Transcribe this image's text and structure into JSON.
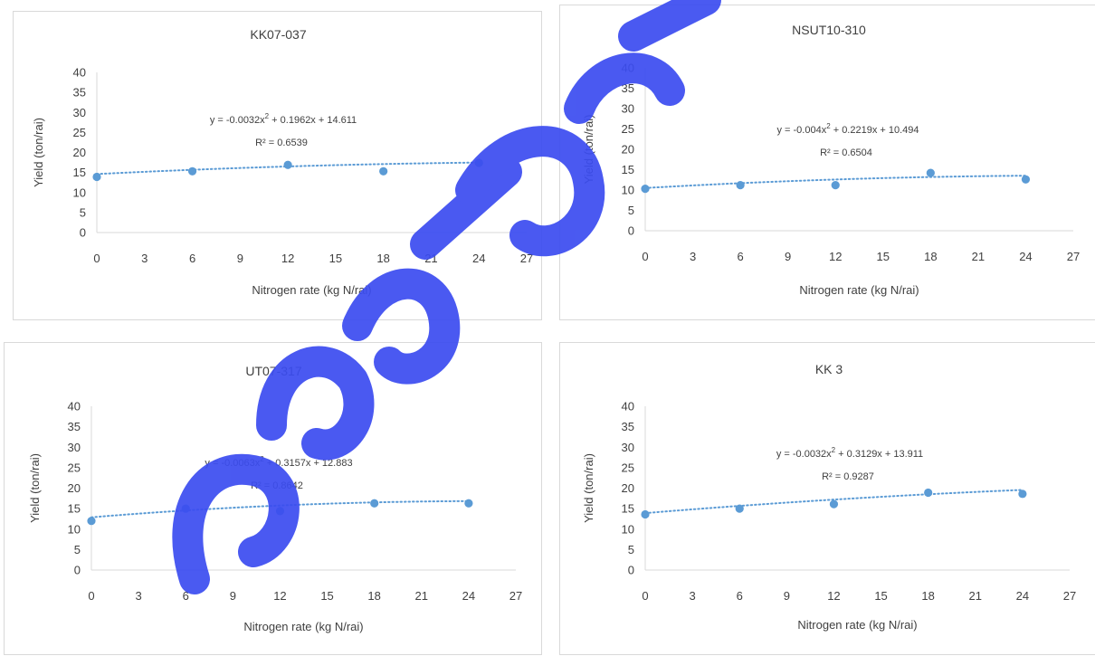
{
  "chart_data": [
    {
      "type": "scatter",
      "title": "KK07-037",
      "xlabel": "Nitrogen rate (kg N/rai)",
      "ylabel": "Yield (ton/rai)",
      "xlim": [
        0,
        27
      ],
      "ylim": [
        0,
        40
      ],
      "xticks": [
        "0",
        "3",
        "6",
        "9",
        "12",
        "15",
        "18",
        "21",
        "24",
        "27"
      ],
      "yticks": [
        "0",
        "5",
        "10",
        "15",
        "20",
        "25",
        "30",
        "35",
        "40"
      ],
      "x": [
        0,
        6,
        12,
        18,
        24
      ],
      "y": [
        13.9,
        15.3,
        16.9,
        15.3,
        17.4
      ],
      "trend": {
        "type": "polynomial-2",
        "a": -0.0032,
        "b": 0.1962,
        "c": 14.611,
        "eq_prefix": "y = -0.0032x",
        "eq_suffix": " + 0.1962x + 14.611",
        "r2": "R² = 0.6539"
      },
      "grid": false,
      "color": "#5b9bd5"
    },
    {
      "type": "scatter",
      "title": "NSUT10-310",
      "xlabel": "Nitrogen rate (kg N/rai)",
      "ylabel": "Yield (ton/rai)",
      "xlim": [
        0,
        27
      ],
      "ylim": [
        0,
        40
      ],
      "xticks": [
        "0",
        "3",
        "6",
        "9",
        "12",
        "15",
        "18",
        "21",
        "24",
        "27"
      ],
      "yticks": [
        "0",
        "5",
        "10",
        "15",
        "20",
        "25",
        "30",
        "35",
        "40"
      ],
      "x": [
        0,
        6,
        12,
        18,
        24
      ],
      "y": [
        10.3,
        11.2,
        11.2,
        14.2,
        12.6
      ],
      "trend": {
        "type": "polynomial-2",
        "a": -0.004,
        "b": 0.2219,
        "c": 10.494,
        "eq_prefix": "y = -0.004x",
        "eq_suffix": " + 0.2219x + 10.494",
        "r2": "R² = 0.6504"
      },
      "grid": false,
      "color": "#5b9bd5"
    },
    {
      "type": "scatter",
      "title": "UT07-317",
      "xlabel": "Nitrogen rate (kg N/rai)",
      "ylabel": "Yield (ton/rai)",
      "xlim": [
        0,
        27
      ],
      "ylim": [
        0,
        40
      ],
      "xticks": [
        "0",
        "3",
        "6",
        "9",
        "12",
        "15",
        "18",
        "21",
        "24",
        "27"
      ],
      "yticks": [
        "0",
        "5",
        "10",
        "15",
        "20",
        "25",
        "30",
        "35",
        "40"
      ],
      "x": [
        0,
        6,
        12,
        18,
        24
      ],
      "y": [
        12.0,
        15.0,
        14.4,
        16.3,
        16.3
      ],
      "trend": {
        "type": "polynomial-2",
        "a": -0.0063,
        "b": 0.3157,
        "c": 12.883,
        "eq_prefix": "y = -0.0063x",
        "eq_suffix": " + 0.3157x + 12.883",
        "r2": "R² = 0.8642"
      },
      "grid": false,
      "color": "#5b9bd5"
    },
    {
      "type": "scatter",
      "title": "KK 3",
      "xlabel": "Nitrogen rate (kg N/rai)",
      "ylabel": "Yield (ton/rai)",
      "xlim": [
        0,
        27
      ],
      "ylim": [
        0,
        40
      ],
      "xticks": [
        "0",
        "3",
        "6",
        "9",
        "12",
        "15",
        "18",
        "21",
        "24",
        "27"
      ],
      "yticks": [
        "0",
        "5",
        "10",
        "15",
        "20",
        "25",
        "30",
        "35",
        "40"
      ],
      "x": [
        0,
        6,
        12,
        18,
        24
      ],
      "y": [
        13.6,
        15.0,
        16.1,
        18.9,
        18.6
      ],
      "trend": {
        "type": "polynomial-2",
        "a": -0.0032,
        "b": 0.3129,
        "c": 13.911,
        "eq_prefix": "y = -0.0032x",
        "eq_suffix": " + 0.3129x + 13.911",
        "r2": "R² = 0.9287"
      },
      "grid": false,
      "color": "#5b9bd5"
    }
  ],
  "watermark_color": "#3b4cf0"
}
